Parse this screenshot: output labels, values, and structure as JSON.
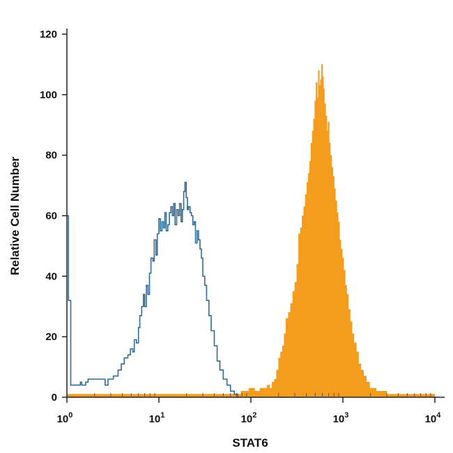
{
  "chart_data": {
    "type": "area",
    "xlabel": "STAT6",
    "ylabel": "Relative Cell Number",
    "xscale": "log",
    "xlim": [
      1,
      10000
    ],
    "ylim": [
      0,
      120
    ],
    "x_ticks": [
      {
        "value": 1,
        "base": "10",
        "exp": "0"
      },
      {
        "value": 10,
        "base": "10",
        "exp": "1"
      },
      {
        "value": 100,
        "base": "10",
        "exp": "2"
      },
      {
        "value": 1000,
        "base": "10",
        "exp": "3"
      },
      {
        "value": 10000,
        "base": "10",
        "exp": "4"
      }
    ],
    "y_ticks": [
      "0",
      "20",
      "40",
      "60",
      "80",
      "100",
      "120"
    ],
    "grid": false,
    "series": [
      {
        "style": "outline",
        "color": "#2f6b94",
        "points": [
          [
            1.0,
            60
          ],
          [
            1.02,
            60
          ],
          [
            1.04,
            32
          ],
          [
            1.07,
            32
          ],
          [
            1.1,
            4
          ],
          [
            1.3,
            4
          ],
          [
            1.4,
            5
          ],
          [
            1.45,
            4
          ],
          [
            1.5,
            4
          ],
          [
            1.6,
            5
          ],
          [
            1.7,
            6
          ],
          [
            2.0,
            6
          ],
          [
            2.3,
            6
          ],
          [
            2.5,
            6
          ],
          [
            2.6,
            4
          ],
          [
            2.8,
            6
          ],
          [
            3.2,
            7
          ],
          [
            3.6,
            9
          ],
          [
            3.9,
            11
          ],
          [
            4.2,
            13
          ],
          [
            4.6,
            14
          ],
          [
            4.9,
            16
          ],
          [
            5.2,
            15
          ],
          [
            5.4,
            19
          ],
          [
            5.7,
            18
          ],
          [
            6.0,
            23
          ],
          [
            6.2,
            27
          ],
          [
            6.5,
            30
          ],
          [
            6.8,
            34
          ],
          [
            7.0,
            30
          ],
          [
            7.3,
            37
          ],
          [
            7.6,
            34
          ],
          [
            7.9,
            41
          ],
          [
            8.2,
            46
          ],
          [
            8.6,
            45
          ],
          [
            8.9,
            52
          ],
          [
            9.3,
            47
          ],
          [
            9.6,
            54
          ],
          [
            10.0,
            59
          ],
          [
            10.4,
            55
          ],
          [
            10.8,
            58
          ],
          [
            11.2,
            56
          ],
          [
            11.6,
            61
          ],
          [
            12.0,
            55
          ],
          [
            12.5,
            57
          ],
          [
            13.0,
            61
          ],
          [
            13.5,
            63
          ],
          [
            14.0,
            60
          ],
          [
            14.5,
            64
          ],
          [
            15.0,
            57
          ],
          [
            15.6,
            62
          ],
          [
            16.2,
            60
          ],
          [
            16.8,
            64
          ],
          [
            17.4,
            58
          ],
          [
            18.0,
            62
          ],
          [
            18.6,
            68
          ],
          [
            19.2,
            71
          ],
          [
            19.8,
            66
          ],
          [
            20.4,
            62
          ],
          [
            21.0,
            63
          ],
          [
            21.8,
            61
          ],
          [
            22.6,
            60
          ],
          [
            23.4,
            57
          ],
          [
            24.2,
            58
          ],
          [
            25.0,
            51
          ],
          [
            26.0,
            55
          ],
          [
            27.0,
            52
          ],
          [
            28.0,
            49
          ],
          [
            29.0,
            46
          ],
          [
            30.0,
            40
          ],
          [
            31.5,
            37
          ],
          [
            33.0,
            32
          ],
          [
            35.0,
            27
          ],
          [
            37.0,
            22
          ],
          [
            40.0,
            17
          ],
          [
            43.0,
            12
          ],
          [
            46.0,
            9
          ],
          [
            50.0,
            6
          ],
          [
            55.0,
            4
          ],
          [
            60.0,
            2
          ],
          [
            66.0,
            1
          ],
          [
            72.0,
            0
          ]
        ]
      },
      {
        "style": "filled",
        "color": "#f39c1d",
        "points": [
          [
            1.0,
            1
          ],
          [
            60,
            1
          ],
          [
            72,
            1
          ],
          [
            78,
            2
          ],
          [
            85,
            2
          ],
          [
            95,
            3
          ],
          [
            110,
            2
          ],
          [
            125,
            3
          ],
          [
            140,
            3
          ],
          [
            150,
            4
          ],
          [
            160,
            3
          ],
          [
            170,
            5
          ],
          [
            180,
            6
          ],
          [
            190,
            9
          ],
          [
            200,
            13
          ],
          [
            210,
            15
          ],
          [
            220,
            17
          ],
          [
            230,
            21
          ],
          [
            240,
            26
          ],
          [
            255,
            28
          ],
          [
            270,
            31
          ],
          [
            285,
            35
          ],
          [
            300,
            38
          ],
          [
            315,
            44
          ],
          [
            330,
            54
          ],
          [
            345,
            56
          ],
          [
            360,
            60
          ],
          [
            375,
            63
          ],
          [
            390,
            67
          ],
          [
            405,
            71
          ],
          [
            420,
            74
          ],
          [
            435,
            78
          ],
          [
            450,
            84
          ],
          [
            465,
            88
          ],
          [
            480,
            92
          ],
          [
            495,
            98
          ],
          [
            510,
            104
          ],
          [
            525,
            99
          ],
          [
            540,
            108
          ],
          [
            555,
            103
          ],
          [
            570,
            105
          ],
          [
            585,
            110
          ],
          [
            600,
            106
          ],
          [
            615,
            102
          ],
          [
            630,
            97
          ],
          [
            650,
            93
          ],
          [
            670,
            88
          ],
          [
            690,
            91
          ],
          [
            710,
            84
          ],
          [
            730,
            80
          ],
          [
            755,
            76
          ],
          [
            780,
            73
          ],
          [
            805,
            69
          ],
          [
            830,
            65
          ],
          [
            860,
            61
          ],
          [
            890,
            58
          ],
          [
            920,
            52
          ],
          [
            950,
            49
          ],
          [
            985,
            46
          ],
          [
            1020,
            42
          ],
          [
            1060,
            37
          ],
          [
            1100,
            34
          ],
          [
            1150,
            29
          ],
          [
            1200,
            25
          ],
          [
            1260,
            21
          ],
          [
            1320,
            18
          ],
          [
            1400,
            15
          ],
          [
            1480,
            11
          ],
          [
            1570,
            9
          ],
          [
            1680,
            7
          ],
          [
            1800,
            5
          ],
          [
            1950,
            3
          ],
          [
            2100,
            3
          ],
          [
            2300,
            2
          ],
          [
            2600,
            2
          ],
          [
            3000,
            1
          ],
          [
            4000,
            1
          ],
          [
            10000,
            1
          ]
        ]
      }
    ]
  }
}
